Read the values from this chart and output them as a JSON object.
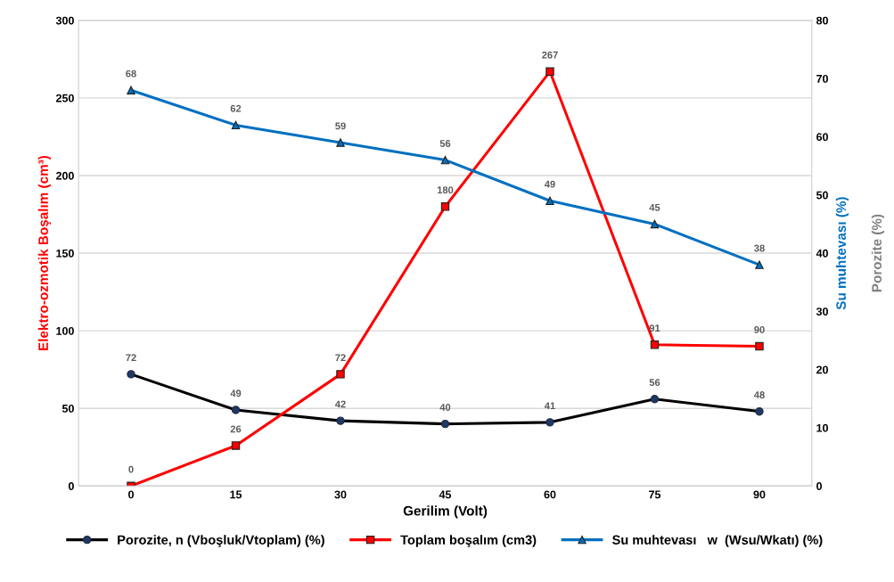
{
  "chart_data": {
    "type": "line",
    "xlabel": "Gerilim (Volt)",
    "ylabel": "Elektro-ozmotik Boşalım (cm³)",
    "y2label": "Su muhtevası (%)",
    "annotations": [
      "Porozite (%)"
    ],
    "categories": [
      "0",
      "15",
      "30",
      "45",
      "60",
      "75",
      "90"
    ],
    "series": [
      {
        "name": "Porozite, n (Vboşluk/Vtoplam) (%)",
        "color": "#000000",
        "marker": "circle",
        "axis": "y",
        "values": [
          72,
          49,
          42,
          40,
          41,
          56,
          48
        ]
      },
      {
        "name": "Toplam boşalım (cm3)",
        "color": "#ff0000",
        "marker": "square",
        "axis": "y",
        "values": [
          0,
          26,
          72,
          180,
          267,
          91,
          90
        ]
      },
      {
        "name": "Su muhtevası   w  (Wsu/Wkatı) (%)",
        "color": "#0070c0",
        "marker": "triangle",
        "axis": "y2",
        "values": [
          68,
          62,
          59,
          56,
          49,
          45,
          38
        ]
      }
    ],
    "ylim": [
      0,
      300
    ],
    "yticks": [
      0,
      50,
      100,
      150,
      200,
      250,
      300
    ],
    "y2lim": [
      0,
      80
    ],
    "y2ticks": [
      0,
      10,
      20,
      30,
      40,
      50,
      60,
      70,
      80
    ],
    "grid": "y",
    "legend": "bottom",
    "data_labels": true,
    "line_style": "solid"
  }
}
